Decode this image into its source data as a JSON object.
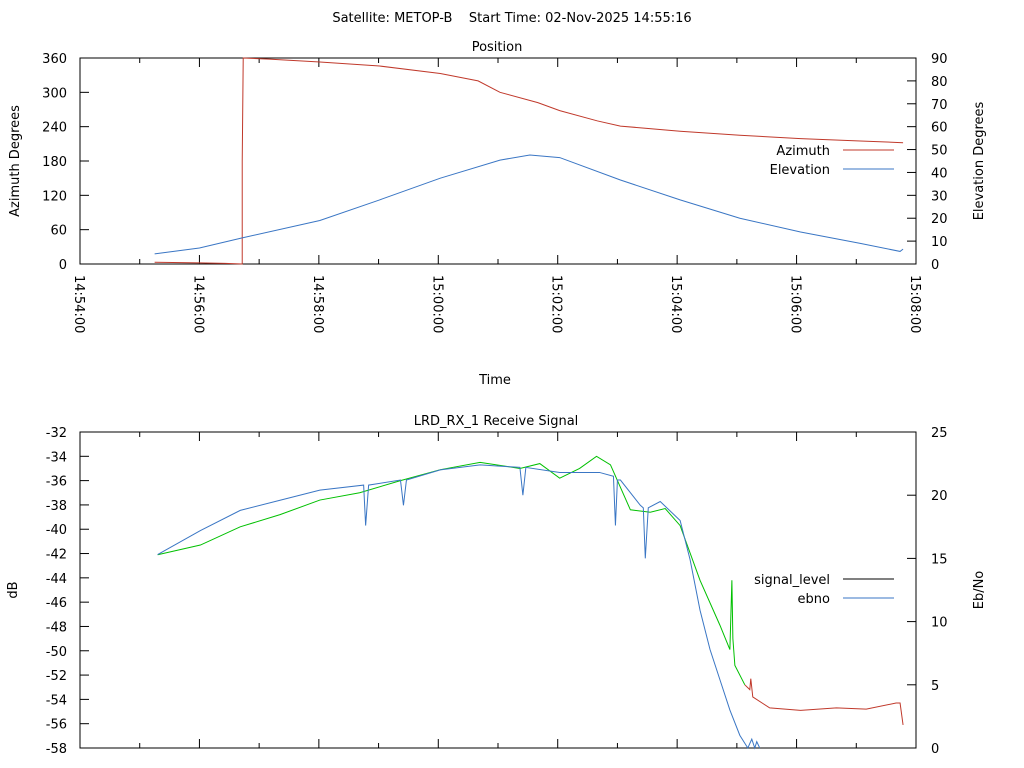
{
  "header": {
    "title": "Satellite: METOP-B    Start Time: 02-Nov-2025 14:55:16"
  },
  "chart_data": [
    {
      "type": "line",
      "title": "Position",
      "xlabel": "Time",
      "ylabel": "Azimuth Degrees",
      "y2label": "Elevation Degrees",
      "xlim": [
        "14:54:00",
        "15:08:00"
      ],
      "ylim": [
        0,
        360
      ],
      "y2lim": [
        0,
        90
      ],
      "xticks": [
        "14:54:00",
        "14:56:00",
        "14:58:00",
        "15:00:00",
        "15:02:00",
        "15:04:00",
        "15:06:00",
        "15:08:00"
      ],
      "yticks": [
        "0",
        "60",
        "120",
        "180",
        "240",
        "300",
        "360"
      ],
      "y2ticks": [
        "0",
        "10",
        "20",
        "30",
        "40",
        "50",
        "60",
        "70",
        "80",
        "90"
      ],
      "legend": "right",
      "series": [
        {
          "name": "Azimuth",
          "axis": "y",
          "color": "#c0392b",
          "points": [
            [
              "14:55:15",
              3
            ],
            [
              "14:56:00",
              2
            ],
            [
              "14:56:26",
              1
            ],
            [
              "14:56:43",
              0
            ],
            [
              "14:56:43",
              180
            ],
            [
              "14:56:44",
              360
            ],
            [
              "14:57:10",
              358
            ],
            [
              "14:58:01",
              353
            ],
            [
              "14:59:01",
              346
            ],
            [
              "15:00:02",
              333
            ],
            [
              "15:00:40",
              320
            ],
            [
              "15:01:02",
              300
            ],
            [
              "15:01:40",
              282
            ],
            [
              "15:02:02",
              268
            ],
            [
              "15:02:40",
              250
            ],
            [
              "15:03:03",
              241
            ],
            [
              "15:04:03",
              232
            ],
            [
              "15:05:03",
              225
            ],
            [
              "15:06:04",
              219
            ],
            [
              "15:07:04",
              215
            ],
            [
              "15:07:47",
              212
            ]
          ]
        },
        {
          "name": "Elevation",
          "axis": "y2",
          "color": "#3a76c4",
          "points": [
            [
              "14:55:15",
              4.4
            ],
            [
              "14:56:00",
              7
            ],
            [
              "14:56:43",
              11.4
            ],
            [
              "14:58:01",
              19
            ],
            [
              "14:59:01",
              28
            ],
            [
              "15:00:02",
              37.5
            ],
            [
              "15:01:02",
              45.4
            ],
            [
              "15:01:32",
              47.6
            ],
            [
              "15:02:02",
              46.5
            ],
            [
              "15:03:03",
              36.7
            ],
            [
              "15:04:03",
              28
            ],
            [
              "15:05:03",
              20
            ],
            [
              "15:06:04",
              14
            ],
            [
              "15:07:04",
              9
            ],
            [
              "15:07:44",
              5.5
            ],
            [
              "15:07:47",
              6.5
            ]
          ]
        }
      ]
    },
    {
      "type": "line",
      "title": "LRD_RX_1 Receive Signal",
      "ylabel": "dB",
      "y2label": "Eb/No",
      "xlim": [
        "14:54:00",
        "15:08:00"
      ],
      "ylim": [
        -58,
        -32
      ],
      "y2lim": [
        0,
        25
      ],
      "yticks": [
        "-32",
        "-34",
        "-36",
        "-38",
        "-40",
        "-42",
        "-44",
        "-46",
        "-48",
        "-50",
        "-52",
        "-54",
        "-56",
        "-58"
      ],
      "y2ticks": [
        "0",
        "5",
        "10",
        "15",
        "20",
        "25"
      ],
      "legend": "right",
      "series": [
        {
          "name": "signal_level",
          "axis": "y",
          "legend_color": "#000000",
          "color": "#00c000",
          "color_after": "#c0392b",
          "color_change": "15:05:08",
          "points": [
            [
              "14:55:18",
              -42.1
            ],
            [
              "14:56:01",
              -41.3
            ],
            [
              "14:56:41",
              -39.8
            ],
            [
              "14:57:21",
              -38.8
            ],
            [
              "14:58:01",
              -37.6
            ],
            [
              "14:58:41",
              -37
            ],
            [
              "14:59:22",
              -36
            ],
            [
              "15:00:02",
              -35.1
            ],
            [
              "15:00:42",
              -34.5
            ],
            [
              "15:01:22",
              -35
            ],
            [
              "15:01:42",
              -34.6
            ],
            [
              "15:02:02",
              -35.8
            ],
            [
              "15:02:22",
              -35
            ],
            [
              "15:02:39",
              -34
            ],
            [
              "15:02:53",
              -34.7
            ],
            [
              "15:03:13",
              -38.4
            ],
            [
              "15:03:33",
              -38.6
            ],
            [
              "15:03:48",
              -38.3
            ],
            [
              "15:04:03",
              -39.7
            ],
            [
              "15:04:23",
              -44.2
            ],
            [
              "15:04:43",
              -47.9
            ],
            [
              "15:04:53",
              -49.9
            ],
            [
              "15:04:55",
              -44.2
            ],
            [
              "15:04:56",
              -49
            ],
            [
              "15:04:58",
              -51.2
            ],
            [
              "15:05:08",
              -52.8
            ],
            [
              "15:05:13",
              -53.2
            ],
            [
              "15:05:14",
              -52.3
            ],
            [
              "15:05:16",
              -53.8
            ],
            [
              "15:05:33",
              -54.7
            ],
            [
              "15:06:04",
              -54.9
            ],
            [
              "15:06:40",
              -54.7
            ],
            [
              "15:07:10",
              -54.8
            ],
            [
              "15:07:40",
              -54.3
            ],
            [
              "15:07:44",
              -54.3
            ],
            [
              "15:07:47",
              -56.1
            ]
          ]
        },
        {
          "name": "ebno",
          "axis": "y2",
          "color": "#3a76c4",
          "points": [
            [
              "14:55:18",
              15.3
            ],
            [
              "14:56:01",
              17.2
            ],
            [
              "14:56:41",
              18.8
            ],
            [
              "14:57:21",
              19.6
            ],
            [
              "14:58:01",
              20.4
            ],
            [
              "14:58:45",
              20.8
            ],
            [
              "14:58:47",
              17.6
            ],
            [
              "14:58:50",
              20.8
            ],
            [
              "14:59:22",
              21.2
            ],
            [
              "14:59:25",
              19.2
            ],
            [
              "14:59:28",
              21.2
            ],
            [
              "15:00:02",
              22
            ],
            [
              "15:00:42",
              22.4
            ],
            [
              "15:01:22",
              22.2
            ],
            [
              "15:01:25",
              20
            ],
            [
              "15:01:28",
              22.2
            ],
            [
              "15:02:02",
              21.8
            ],
            [
              "15:02:42",
              21.8
            ],
            [
              "15:02:56",
              21.5
            ],
            [
              "15:02:58",
              17.6
            ],
            [
              "15:03:00",
              21.2
            ],
            [
              "15:03:03",
              21.2
            ],
            [
              "15:03:23",
              19.2
            ],
            [
              "15:03:26",
              19
            ],
            [
              "15:03:28",
              15
            ],
            [
              "15:03:31",
              19
            ],
            [
              "15:03:43",
              19.5
            ],
            [
              "15:04:03",
              18
            ],
            [
              "15:04:13",
              14.9
            ],
            [
              "15:04:23",
              10.9
            ],
            [
              "15:04:33",
              7.8
            ],
            [
              "15:04:43",
              5.4
            ],
            [
              "15:04:53",
              3
            ],
            [
              "15:05:03",
              1
            ],
            [
              "15:05:11",
              0
            ],
            [
              "15:05:15",
              0.7
            ],
            [
              "15:05:18",
              0
            ],
            [
              "15:05:20",
              0.5
            ],
            [
              "15:05:23",
              0
            ]
          ]
        }
      ]
    }
  ]
}
